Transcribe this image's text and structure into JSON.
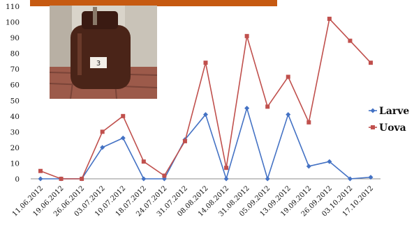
{
  "header_bar_color": "#c65a11",
  "photo": {
    "label": "3"
  },
  "chart_data": {
    "type": "line",
    "categories": [
      "11.06.2012",
      "19.06.2012",
      "26.06.2012",
      "03.07.2012",
      "10.07.2012",
      "18.07.2012",
      "24.07.2012",
      "31.07.2012",
      "08.08.2012",
      "14.08.2012",
      "31.08.2012",
      "05.09.2012",
      "13.09.2012",
      "19.09.2012",
      "26.09.2012",
      "03.10.2012",
      "17.10.2012"
    ],
    "yticks": [
      0,
      10,
      20,
      30,
      40,
      50,
      60,
      70,
      80,
      90,
      100,
      110
    ],
    "ylim": [
      0,
      110
    ],
    "grid": false,
    "legend_position": "right",
    "series": [
      {
        "name": "Larve",
        "color": "#4472c4",
        "marker": "diamond",
        "values": [
          0,
          0,
          0,
          20,
          26,
          0,
          0,
          25,
          41,
          0,
          45,
          0,
          41,
          8,
          11,
          0,
          1
        ]
      },
      {
        "name": "Uova",
        "color": "#c0504d",
        "marker": "square",
        "values": [
          5,
          0,
          0,
          30,
          40,
          11,
          2,
          24,
          74,
          7,
          91,
          46,
          65,
          36,
          102,
          88,
          74
        ]
      }
    ]
  }
}
